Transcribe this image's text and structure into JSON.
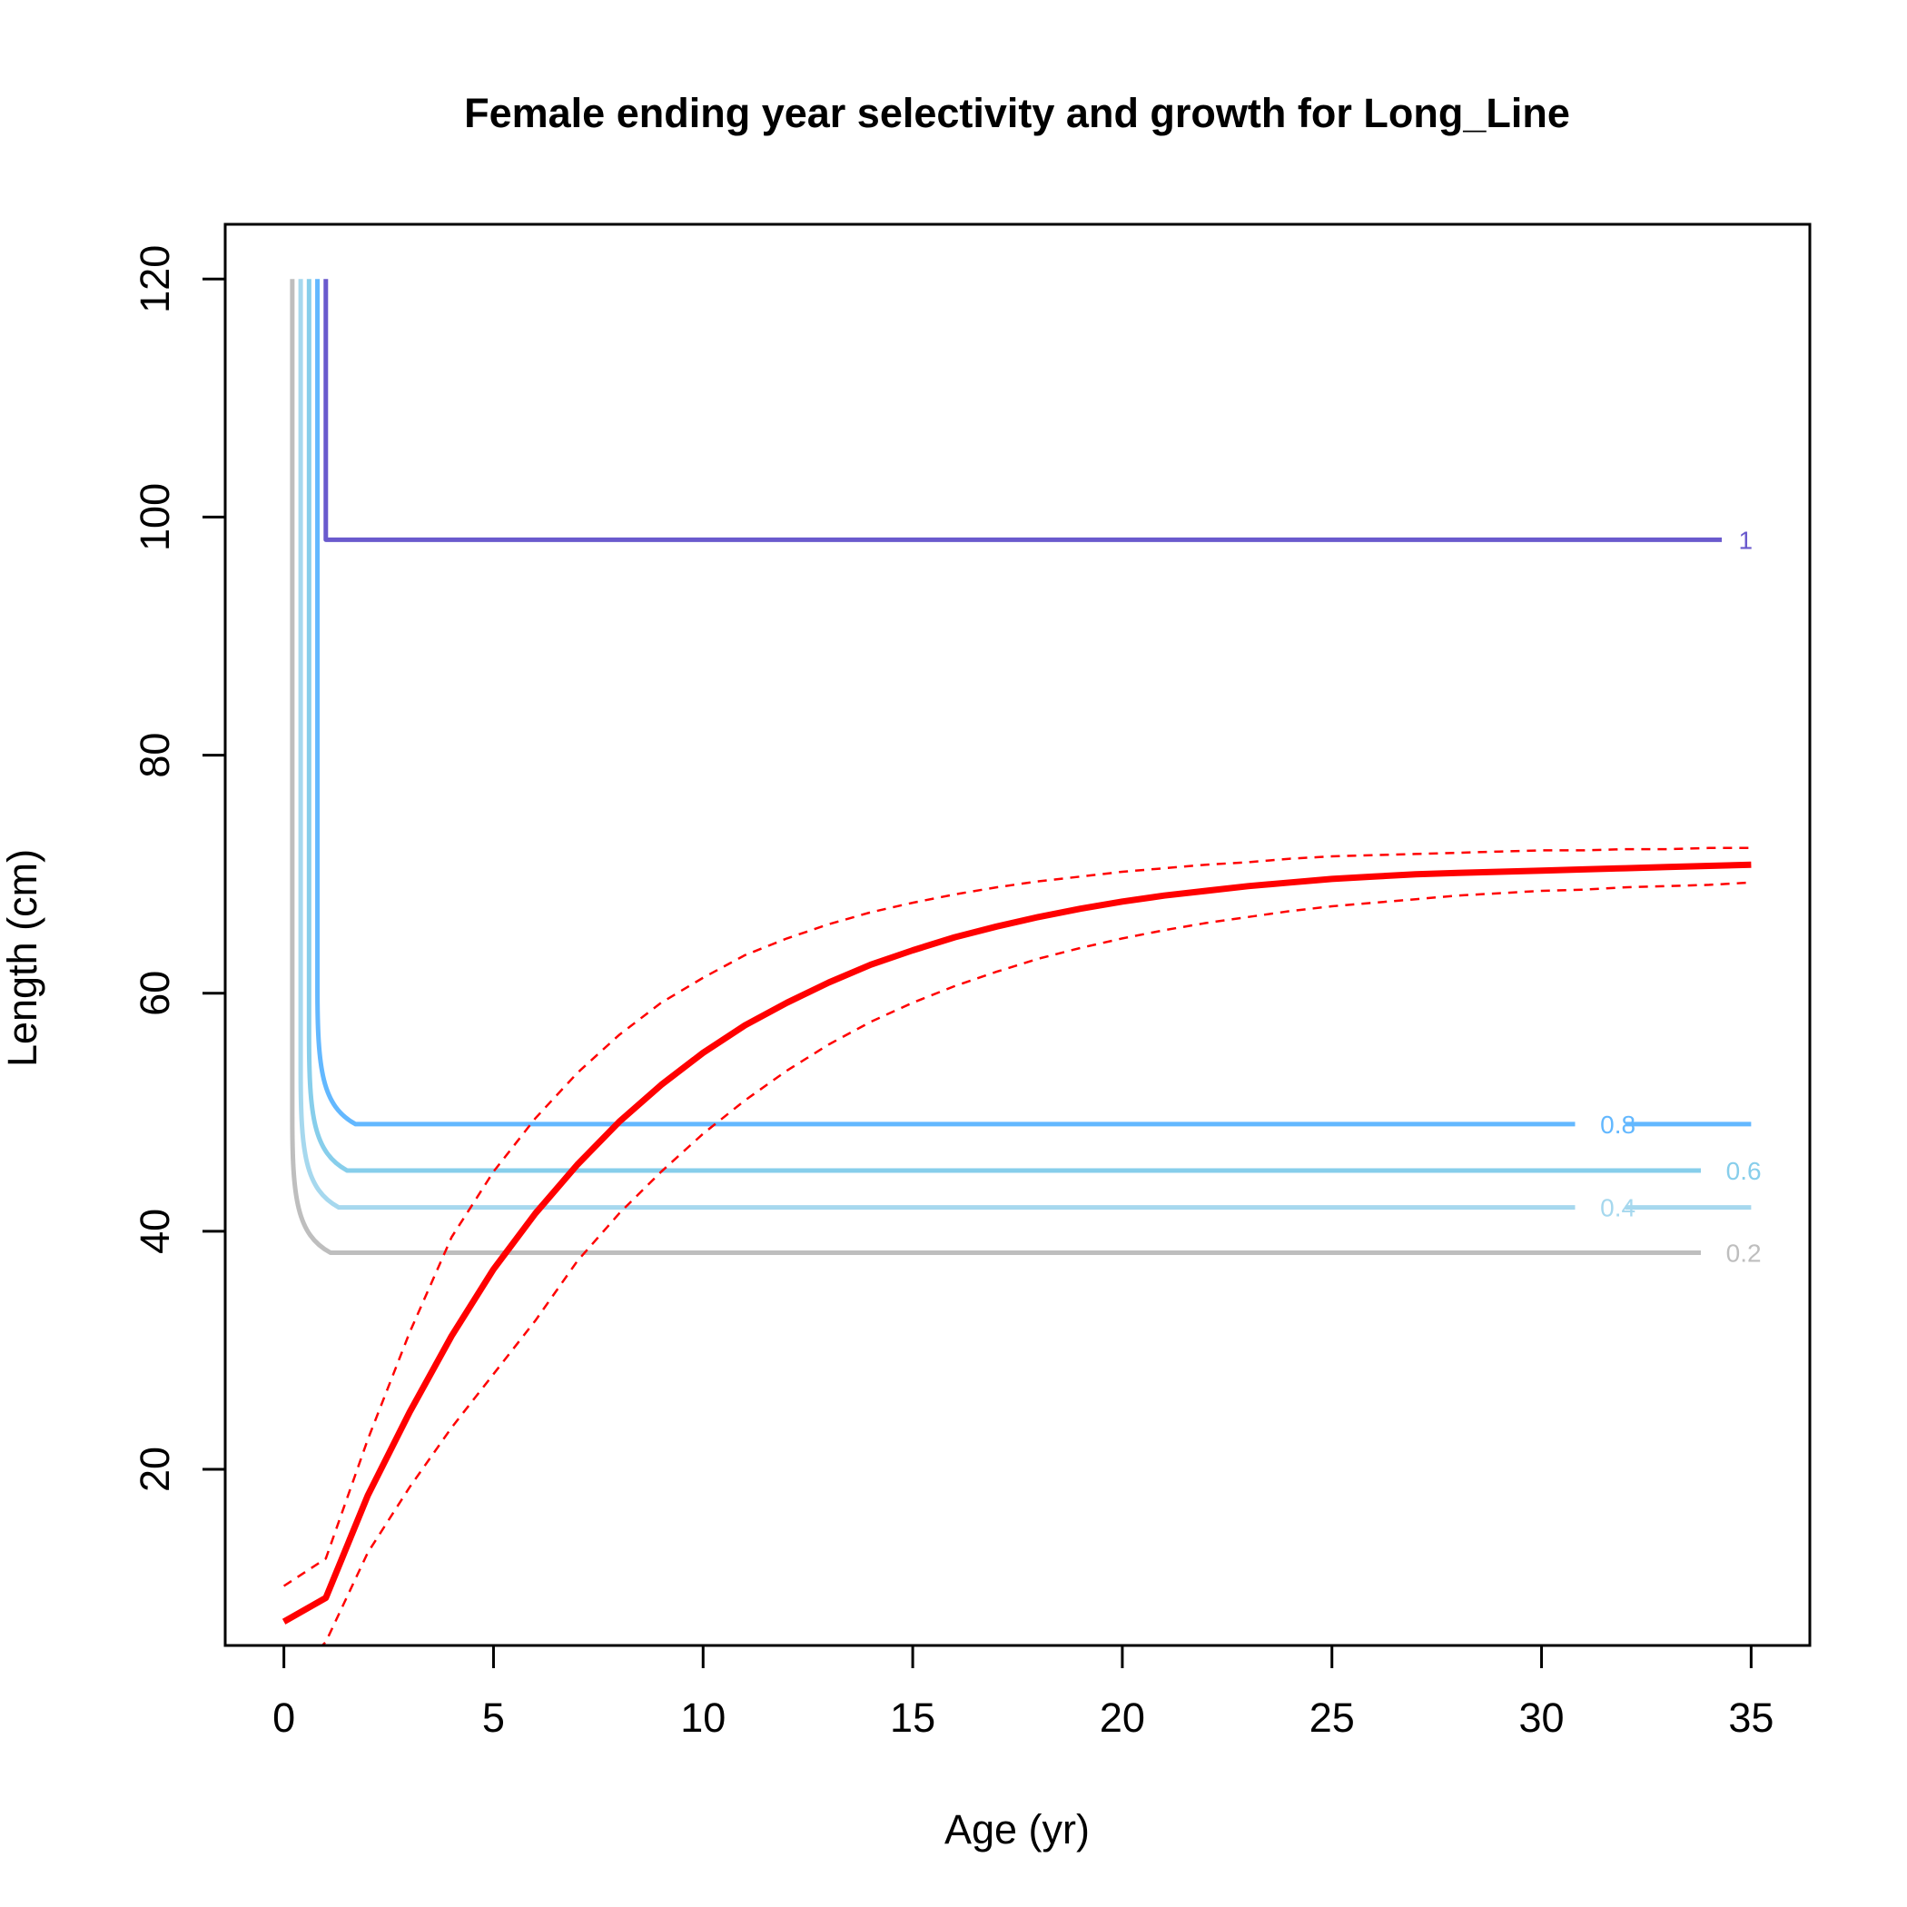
{
  "chart_data": {
    "type": "line",
    "title": "Female ending year selectivity and growth for Long_Line",
    "xlabel": "Age (yr)",
    "ylabel": "Length (cm)",
    "xlim": [
      -1.4,
      36.4
    ],
    "ylim": [
      5.2,
      124.6
    ],
    "xticks": [
      0,
      5,
      10,
      15,
      20,
      25,
      30,
      35
    ],
    "yticks": [
      20,
      40,
      60,
      80,
      100,
      120
    ],
    "grid": false,
    "legend": "none",
    "growth": {
      "color": "#ff0000",
      "x": [
        0,
        1,
        2,
        3,
        4,
        5,
        6,
        7,
        8,
        9,
        10,
        11,
        12,
        13,
        14,
        15,
        16,
        17,
        18,
        19,
        20,
        21,
        22,
        23,
        24,
        25,
        26,
        27,
        28,
        29,
        30,
        31,
        32,
        33,
        34,
        35
      ],
      "mean": [
        7.2,
        9.2,
        17.8,
        24.8,
        31.2,
        36.8,
        41.5,
        45.6,
        49.2,
        52.3,
        55.0,
        57.3,
        59.2,
        60.9,
        62.4,
        63.6,
        64.7,
        65.6,
        66.4,
        67.1,
        67.7,
        68.2,
        68.6,
        69.0,
        69.3,
        69.6,
        69.8,
        70.0,
        70.1,
        70.2,
        70.3,
        70.4,
        70.5,
        70.6,
        70.7,
        70.8
      ],
      "upper": [
        10.2,
        12.5,
        22.5,
        31.5,
        39.5,
        45.0,
        49.5,
        53.3,
        56.5,
        59.2,
        61.3,
        63.2,
        64.6,
        65.8,
        66.8,
        67.6,
        68.3,
        68.9,
        69.4,
        69.8,
        70.2,
        70.5,
        70.8,
        71.0,
        71.3,
        71.5,
        71.6,
        71.7,
        71.8,
        71.9,
        72.0,
        72.0,
        72.1,
        72.1,
        72.2,
        72.2
      ],
      "lower": [
        2.0,
        5.5,
        13.0,
        18.5,
        23.5,
        28.0,
        32.5,
        37.5,
        41.5,
        45.0,
        48.2,
        51.0,
        53.5,
        55.7,
        57.6,
        59.2,
        60.6,
        61.8,
        62.9,
        63.8,
        64.6,
        65.3,
        65.9,
        66.4,
        66.9,
        67.3,
        67.6,
        67.9,
        68.2,
        68.4,
        68.6,
        68.7,
        68.9,
        69.0,
        69.1,
        69.3
      ]
    },
    "selectivity_contours": [
      {
        "level": "0.2",
        "color": "#bebebe",
        "x_vertical": 0.2,
        "y_plateau": 38.2,
        "x_end": 33.8,
        "label_x": 34.4,
        "x_line_resume": null
      },
      {
        "level": "0.4",
        "color": "#a6d8ee",
        "x_vertical": 0.4,
        "y_plateau": 42.0,
        "x_end": 30.8,
        "label_x": 31.4,
        "x_line_resume": 32.0
      },
      {
        "level": "0.6",
        "color": "#87ceeb",
        "x_vertical": 0.6,
        "y_plateau": 45.1,
        "x_end": 33.8,
        "label_x": 34.4,
        "x_line_resume": null
      },
      {
        "level": "0.8",
        "color": "#63b8ff",
        "x_vertical": 0.8,
        "y_plateau": 49.0,
        "x_end": 30.8,
        "label_x": 31.4,
        "x_line_resume": 32.0
      },
      {
        "level": "1",
        "color": "#6a5acd",
        "x_vertical": 1.0,
        "y_plateau": 98.1,
        "x_end": 34.3,
        "label_x": 34.7,
        "x_line_resume": null
      }
    ]
  }
}
